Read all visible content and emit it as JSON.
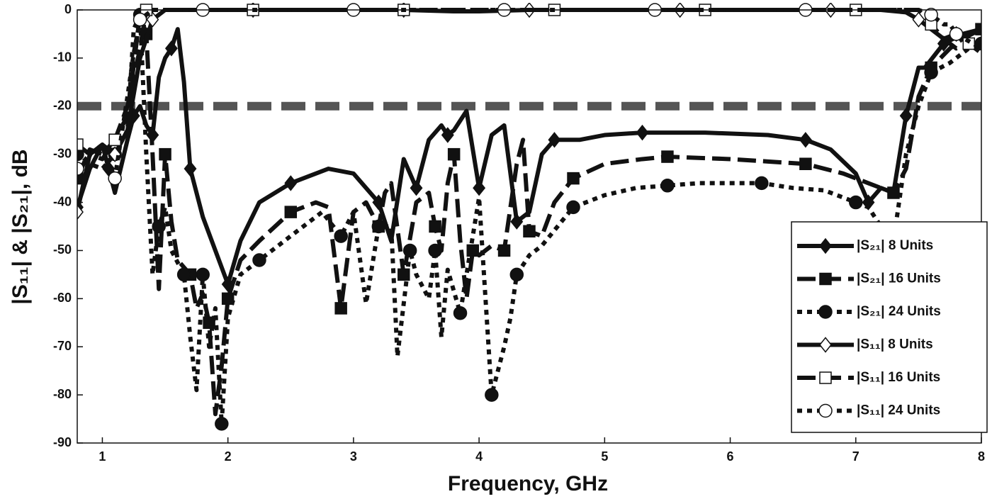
{
  "chart_data": {
    "type": "line",
    "xlabel": "Frequency, GHz",
    "ylabel": "|S₁₁| & |S₂₁|, dB",
    "xlim": [
      0.8,
      8
    ],
    "xticks": [
      1,
      2,
      3,
      4,
      5,
      6,
      7,
      8
    ],
    "ylim": [
      -90,
      0
    ],
    "yticks": [
      0,
      -10,
      -20,
      -30,
      -40,
      -50,
      -60,
      -70,
      -80,
      -90
    ],
    "grid": false,
    "legend_loc": "lower right",
    "reference_lines": [
      {
        "value": -20,
        "color": "#555555"
      }
    ],
    "series": [
      {
        "name": "|S₂₁| 8 Units",
        "color": "#111111",
        "line_style": "solid",
        "marker": "diamond",
        "marker_fill": "filled",
        "x": [
          0.8,
          0.9,
          1.0,
          1.05,
          1.1,
          1.2,
          1.25,
          1.3,
          1.35,
          1.4,
          1.45,
          1.5,
          1.55,
          1.6,
          1.65,
          1.7,
          1.8,
          1.9,
          2.0,
          2.1,
          2.25,
          2.5,
          2.8,
          3.0,
          3.2,
          3.3,
          3.4,
          3.5,
          3.6,
          3.7,
          3.75,
          3.8,
          3.9,
          4.0,
          4.1,
          4.2,
          4.3,
          4.4,
          4.5,
          4.6,
          4.8,
          5.0,
          5.3,
          5.8,
          6.3,
          6.6,
          6.8,
          7.0,
          7.1,
          7.2,
          7.3,
          7.4,
          7.5,
          7.55,
          7.7,
          7.85,
          8.0
        ],
        "values": [
          -41,
          -33,
          -28,
          -33,
          -38,
          -27,
          -22,
          -20,
          -24,
          -26,
          -14,
          -10,
          -8,
          -4,
          -15,
          -33,
          -43,
          -50,
          -57,
          -48,
          -40,
          -36,
          -33,
          -34,
          -40,
          -48,
          -31,
          -37,
          -27,
          -24,
          -26,
          -25,
          -21,
          -37,
          -26,
          -24,
          -44,
          -42,
          -30,
          -27,
          -27,
          -26,
          -25.5,
          -25.5,
          -26,
          -27,
          -29,
          -34,
          -40,
          -37,
          -38,
          -22,
          -12,
          -12,
          -7,
          -5,
          -4
        ]
      },
      {
        "name": "|S₂₁| 16 Units",
        "color": "#111111",
        "line_style": "dashed",
        "marker": "square",
        "marker_fill": "filled",
        "x": [
          0.8,
          0.9,
          1.0,
          1.1,
          1.2,
          1.3,
          1.35,
          1.4,
          1.45,
          1.5,
          1.55,
          1.6,
          1.7,
          1.75,
          1.8,
          1.85,
          1.9,
          1.95,
          2.0,
          2.1,
          2.25,
          2.5,
          2.7,
          2.8,
          2.9,
          3.0,
          3.1,
          3.2,
          3.25,
          3.3,
          3.4,
          3.5,
          3.6,
          3.65,
          3.7,
          3.75,
          3.8,
          3.85,
          3.9,
          3.95,
          4.0,
          4.1,
          4.2,
          4.3,
          4.35,
          4.4,
          4.5,
          4.6,
          4.75,
          5.0,
          5.3,
          5.5,
          6.0,
          6.3,
          6.6,
          6.9,
          7.1,
          7.3,
          7.4,
          7.5,
          7.6,
          7.75,
          7.85,
          8.0
        ],
        "values": [
          -35,
          -29,
          -30,
          -27,
          -22,
          -1,
          -5,
          -30,
          -58,
          -30,
          -44,
          -52,
          -55,
          -62,
          -59,
          -65,
          -84,
          -74,
          -60,
          -52,
          -48,
          -42,
          -40,
          -41,
          -62,
          -42,
          -40,
          -45,
          -38,
          -36,
          -55,
          -40,
          -38,
          -45,
          -50,
          -36,
          -30,
          -48,
          -60,
          -50,
          -51,
          -49,
          -50,
          -32,
          -27,
          -46,
          -47,
          -40,
          -35,
          -32,
          -31,
          -30.5,
          -31,
          -31.5,
          -32,
          -34,
          -36,
          -38,
          -33,
          -18,
          -12,
          -8,
          -6,
          -4
        ]
      },
      {
        "name": "|S₂₁| 24 Units",
        "color": "#111111",
        "line_style": "dotted",
        "marker": "circle",
        "marker_fill": "filled",
        "x": [
          0.8,
          0.9,
          1.0,
          1.1,
          1.2,
          1.25,
          1.3,
          1.35,
          1.4,
          1.45,
          1.5,
          1.55,
          1.65,
          1.7,
          1.75,
          1.8,
          1.85,
          1.9,
          1.95,
          2.0,
          2.1,
          2.25,
          2.5,
          2.75,
          2.9,
          3.0,
          3.1,
          3.2,
          3.3,
          3.35,
          3.45,
          3.5,
          3.6,
          3.65,
          3.7,
          3.75,
          3.85,
          3.9,
          4.0,
          4.1,
          4.2,
          4.25,
          4.3,
          4.4,
          4.5,
          4.75,
          5.0,
          5.25,
          5.5,
          5.75,
          6.0,
          6.25,
          6.5,
          6.75,
          7.0,
          7.1,
          7.2,
          7.3,
          7.4,
          7.5,
          7.6,
          7.75,
          7.9,
          8.0
        ],
        "values": [
          -30,
          -32,
          -33,
          -30,
          -25,
          -4,
          -1,
          -30,
          -55,
          -45,
          -41,
          -50,
          -55,
          -68,
          -79,
          -55,
          -70,
          -62,
          -86,
          -64,
          -55,
          -52,
          -47,
          -42,
          -47,
          -42,
          -61,
          -45,
          -45,
          -72,
          -50,
          -55,
          -60,
          -50,
          -68,
          -54,
          -63,
          -55,
          -39,
          -80,
          -70,
          -64,
          -55,
          -51,
          -49,
          -41,
          -38.5,
          -37,
          -36.5,
          -36,
          -36,
          -36,
          -37,
          -37.5,
          -40,
          -41,
          -45,
          -48,
          -30,
          -20,
          -13,
          -11,
          -8,
          -7
        ]
      },
      {
        "name": "|S₁₁| 8 Units",
        "color": "#111111",
        "line_style": "solid",
        "marker": "diamond",
        "marker_fill": "open",
        "x": [
          0.8,
          0.9,
          1.0,
          1.1,
          1.2,
          1.3,
          1.4,
          1.5,
          1.8,
          2.2,
          2.6,
          3.0,
          3.4,
          3.8,
          4.0,
          4.4,
          4.8,
          5.2,
          5.6,
          6.0,
          6.4,
          6.8,
          7.2,
          7.4,
          7.5,
          7.6,
          7.7,
          7.8,
          7.9,
          8.0
        ],
        "values": [
          -42,
          -30,
          -28,
          -30,
          -25,
          -10,
          -2,
          0,
          0,
          0,
          0,
          0,
          0,
          -0.3,
          -0.3,
          0,
          0,
          0,
          0,
          0,
          0,
          0,
          0,
          -0.5,
          -2,
          -4,
          -6,
          -5,
          -6,
          -8
        ]
      },
      {
        "name": "|S₁₁| 16 Units",
        "color": "#111111",
        "line_style": "dashed",
        "marker": "square",
        "marker_fill": "open",
        "x": [
          0.8,
          0.9,
          1.0,
          1.1,
          1.2,
          1.3,
          1.35,
          1.5,
          1.8,
          2.2,
          2.6,
          3.0,
          3.4,
          3.8,
          4.2,
          4.6,
          5.0,
          5.4,
          5.8,
          6.2,
          6.6,
          7.0,
          7.4,
          7.5,
          7.6,
          7.7,
          7.8,
          7.9,
          8.0
        ],
        "values": [
          -28,
          -30,
          -31,
          -27,
          -20,
          -8,
          0,
          0,
          0,
          0,
          0,
          0,
          0,
          0,
          0,
          0,
          0,
          0,
          0,
          0,
          0,
          0,
          0,
          0,
          -3,
          -6,
          -8,
          -7,
          -9
        ]
      },
      {
        "name": "|S₁₁| 24 Units",
        "color": "#111111",
        "line_style": "dotted",
        "marker": "circle",
        "marker_fill": "open",
        "x": [
          0.8,
          0.9,
          1.0,
          1.1,
          1.2,
          1.25,
          1.3,
          1.4,
          1.5,
          1.8,
          2.2,
          2.6,
          3.0,
          3.4,
          3.8,
          4.2,
          4.6,
          5.0,
          5.4,
          5.8,
          6.2,
          6.6,
          7.0,
          7.5,
          7.6,
          7.7,
          7.75,
          7.8,
          8.0
        ],
        "values": [
          -33,
          -30,
          -28,
          -35,
          -18,
          -9,
          -2,
          0,
          0,
          0,
          0,
          0,
          0,
          0,
          0,
          0,
          0,
          0,
          0,
          0,
          0,
          0,
          0,
          0,
          -1,
          -3,
          -3,
          -5,
          -8
        ]
      }
    ]
  }
}
